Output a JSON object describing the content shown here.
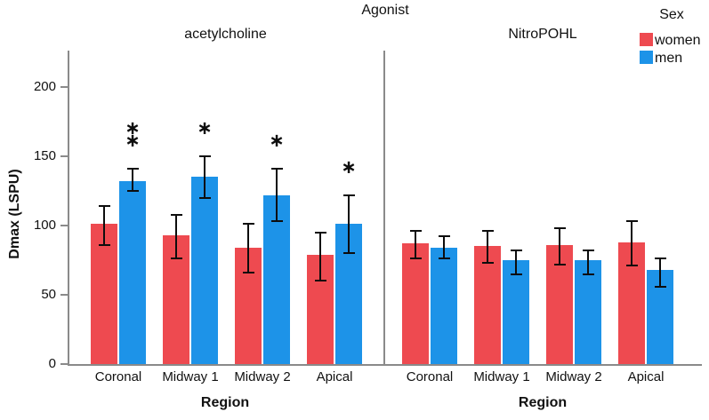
{
  "chart_data": {
    "type": "bar",
    "title": "Agonist",
    "xlabel": "Region",
    "ylabel": "Dmax (LSPU)",
    "yticks": [
      0,
      50,
      100,
      150,
      200
    ],
    "ylim": [
      0,
      225
    ],
    "grid": false,
    "categories": [
      "Coronal",
      "Midway 1",
      "Midway 2",
      "Apical"
    ],
    "legend": {
      "title": "Sex",
      "position": "top-right",
      "entries": [
        {
          "label": "women",
          "color": "#EE4A50"
        },
        {
          "label": "men",
          "color": "#1D93E8"
        }
      ]
    },
    "panels": [
      {
        "label": "acetylcholine",
        "series": [
          {
            "name": "women",
            "color": "#EE4A50",
            "values": [
              101,
              93,
              84,
              79
            ],
            "err_low": [
              86,
              76,
              66,
              60
            ],
            "err_high": [
              114,
              108,
              101,
              95
            ],
            "sig": [
              "",
              "",
              "",
              ""
            ]
          },
          {
            "name": "men",
            "color": "#1D93E8",
            "values": [
              132,
              135,
              122,
              101
            ],
            "err_low": [
              125,
              120,
              103,
              80
            ],
            "err_high": [
              141,
              150,
              141,
              122
            ],
            "sig": [
              "**",
              "*",
              "*",
              "*"
            ]
          }
        ]
      },
      {
        "label": "NitroPOHL",
        "series": [
          {
            "name": "women",
            "color": "#EE4A50",
            "values": [
              87,
              85,
              86,
              88
            ],
            "err_low": [
              76,
              73,
              72,
              71
            ],
            "err_high": [
              96,
              96,
              98,
              103
            ],
            "sig": [
              "",
              "",
              "",
              ""
            ]
          },
          {
            "name": "men",
            "color": "#1D93E8",
            "values": [
              84,
              75,
              75,
              68
            ],
            "err_low": [
              76,
              65,
              65,
              56
            ],
            "err_high": [
              92,
              82,
              82,
              76
            ],
            "sig": [
              "",
              "",
              "",
              ""
            ]
          }
        ]
      }
    ]
  }
}
